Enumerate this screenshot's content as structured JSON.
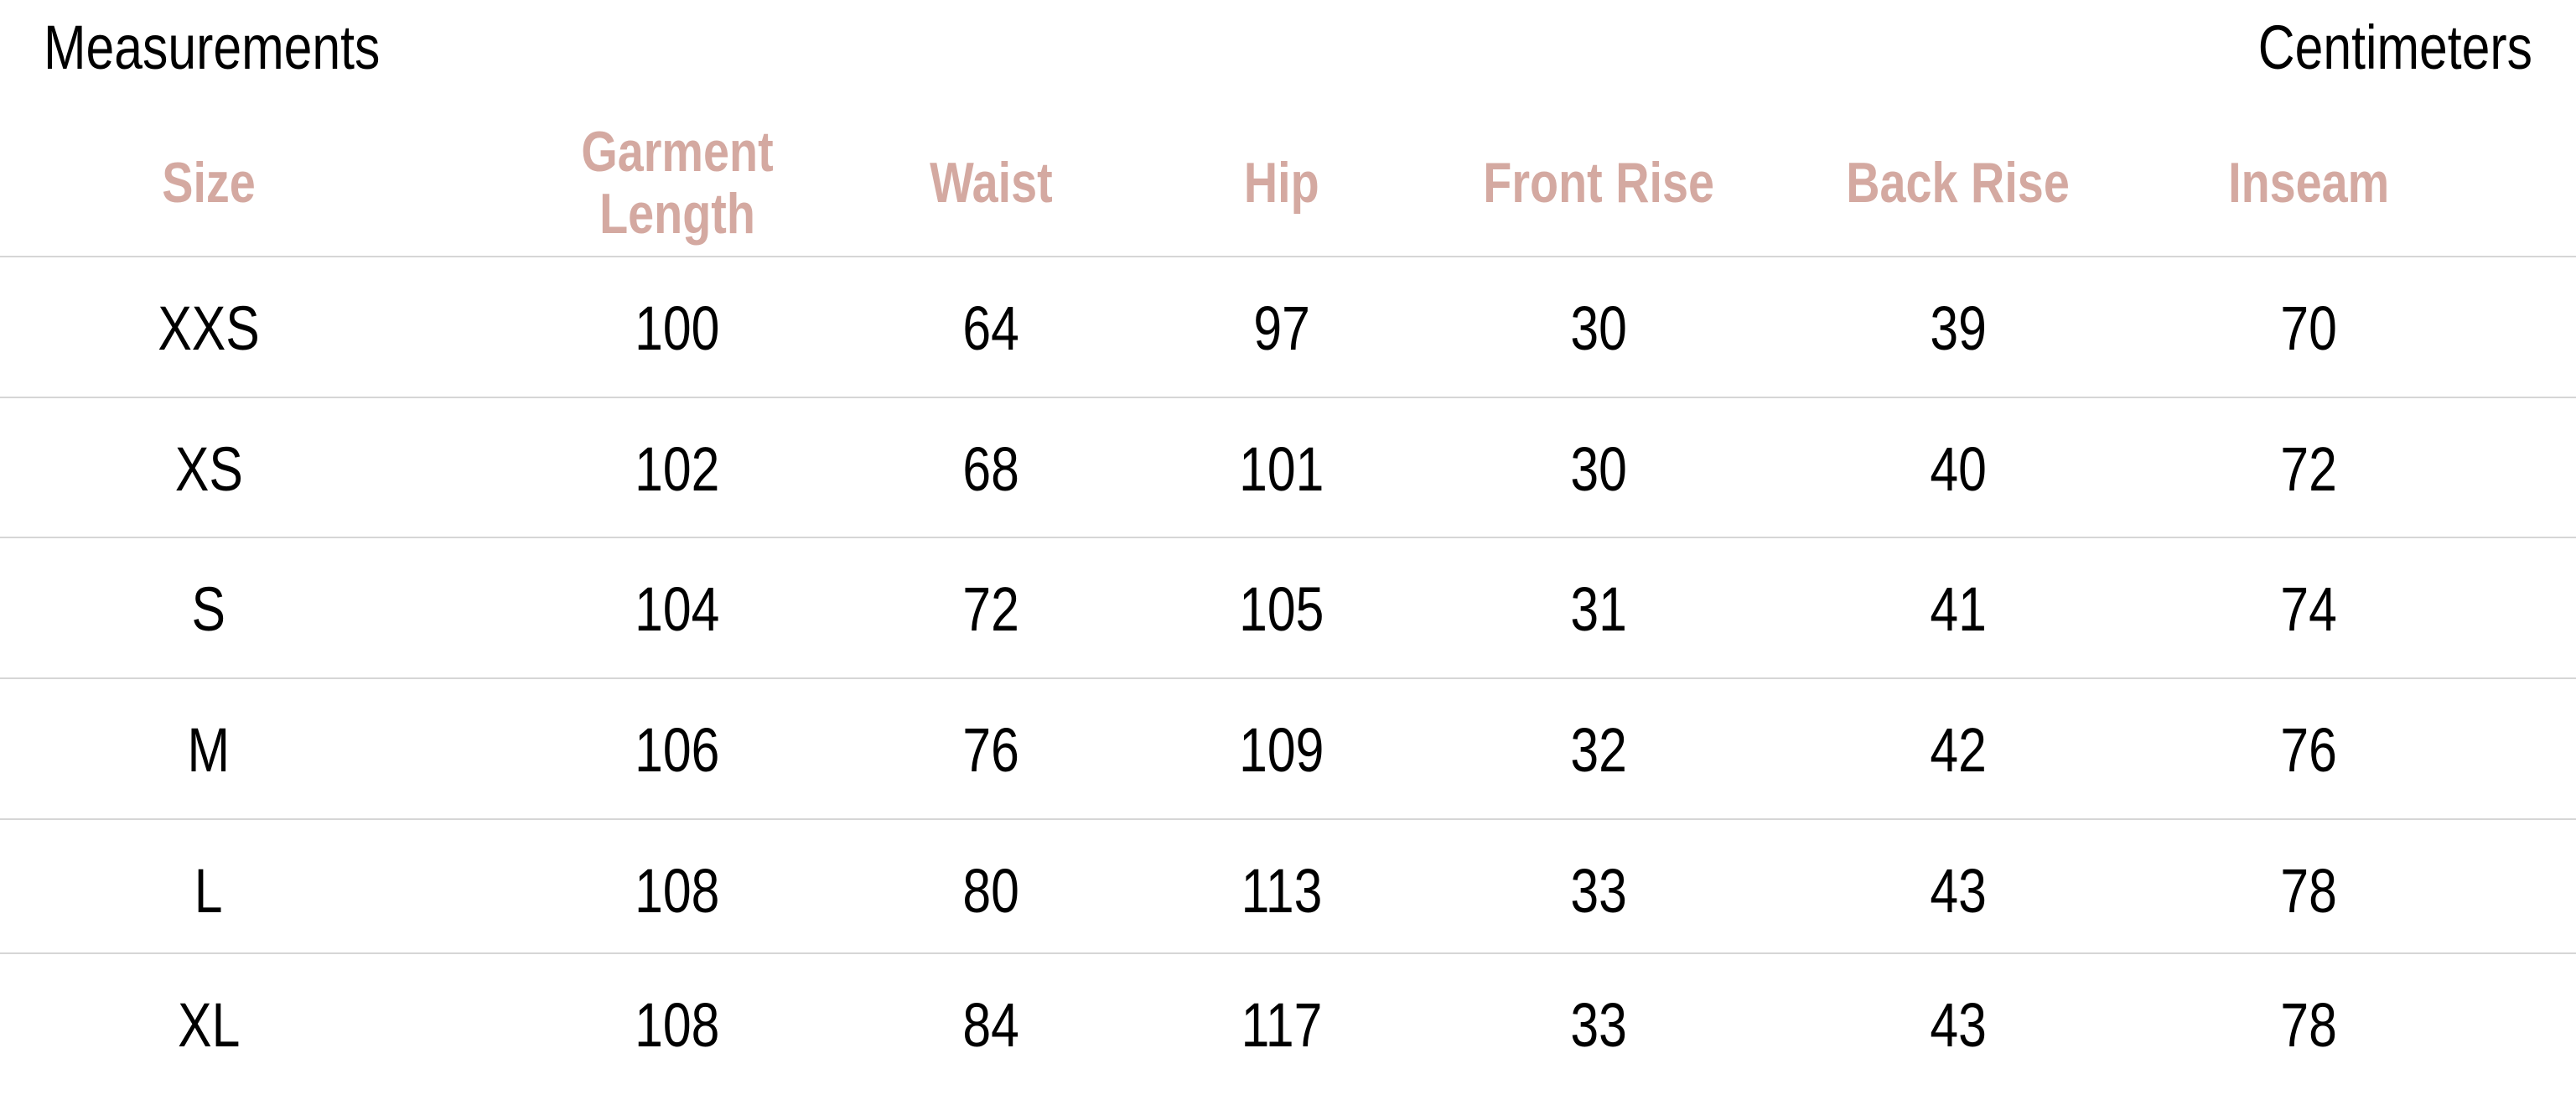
{
  "title": "Measurements",
  "unit": "Centimeters",
  "header_color": "#d4a9a1",
  "columns": [
    "Size",
    "Garment Length",
    "Waist",
    "Hip",
    "Front Rise",
    "Back Rise",
    "Inseam"
  ],
  "rows": [
    [
      "XXS",
      "100",
      "64",
      "97",
      "30",
      "39",
      "70"
    ],
    [
      "XS",
      "102",
      "68",
      "101",
      "30",
      "40",
      "72"
    ],
    [
      "S",
      "104",
      "72",
      "105",
      "31",
      "41",
      "74"
    ],
    [
      "M",
      "106",
      "76",
      "109",
      "32",
      "42",
      "76"
    ],
    [
      "L",
      "108",
      "80",
      "113",
      "33",
      "43",
      "78"
    ],
    [
      "XL",
      "108",
      "84",
      "117",
      "33",
      "43",
      "78"
    ]
  ]
}
